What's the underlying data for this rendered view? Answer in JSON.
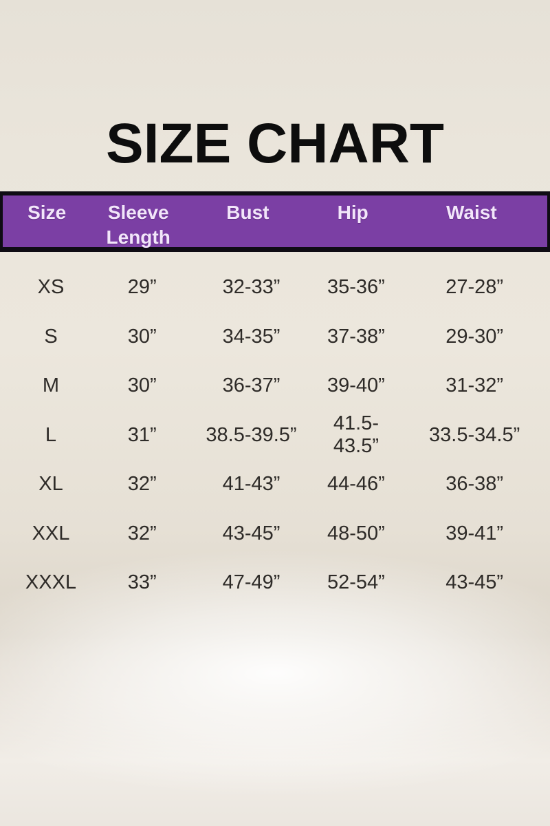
{
  "page": {
    "title": "SIZE CHART"
  },
  "table": {
    "columns": [
      "Size",
      "Sleeve Length",
      "Bust",
      "Hip",
      "Waist"
    ],
    "rows": [
      {
        "cells": [
          "XS",
          "29”",
          "32-33”",
          "35-36”",
          "27-28”"
        ]
      },
      {
        "cells": [
          "S",
          "30”",
          "34-35”",
          "37-38”",
          "29-30”"
        ]
      },
      {
        "cells": [
          "M",
          "30”",
          "36-37”",
          "39-40”",
          "31-32”"
        ]
      },
      {
        "cells": [
          "L",
          "31”",
          "38.5-39.5”",
          "41.5-43.5”",
          "33.5-34.5”"
        ]
      },
      {
        "cells": [
          "XL",
          "32”",
          "41-43”",
          "44-46”",
          "36-38”"
        ]
      },
      {
        "cells": [
          "XXL",
          "32”",
          "43-45”",
          "48-50”",
          "39-41”"
        ]
      },
      {
        "cells": [
          "XXXL",
          "33”",
          "47-49”",
          "52-54”",
          "43-45”"
        ]
      }
    ]
  },
  "chart_data": {
    "type": "table",
    "title": "SIZE CHART",
    "columns": [
      "Size",
      "Sleeve Length",
      "Bust",
      "Hip",
      "Waist"
    ],
    "rows": [
      [
        "XS",
        "29”",
        "32-33”",
        "35-36”",
        "27-28”"
      ],
      [
        "S",
        "30”",
        "34-35”",
        "37-38”",
        "29-30”"
      ],
      [
        "M",
        "30”",
        "36-37”",
        "39-40”",
        "31-32”"
      ],
      [
        "L",
        "31”",
        "38.5-39.5”",
        "41.5-43.5”",
        "33.5-34.5”"
      ],
      [
        "XL",
        "32”",
        "41-43”",
        "44-46”",
        "36-38”"
      ],
      [
        "XXL",
        "32”",
        "43-45”",
        "48-50”",
        "39-41”"
      ],
      [
        "XXXL",
        "33”",
        "47-49”",
        "52-54”",
        "43-45”"
      ]
    ],
    "units": "inches"
  },
  "colors": {
    "header_background": "#7b3fa4",
    "header_text": "#f2e6fa",
    "header_border": "#0f0c14",
    "title_text": "#0d0d0d",
    "body_text": "#2e2b28",
    "backdrop": "#e9e4da"
  }
}
